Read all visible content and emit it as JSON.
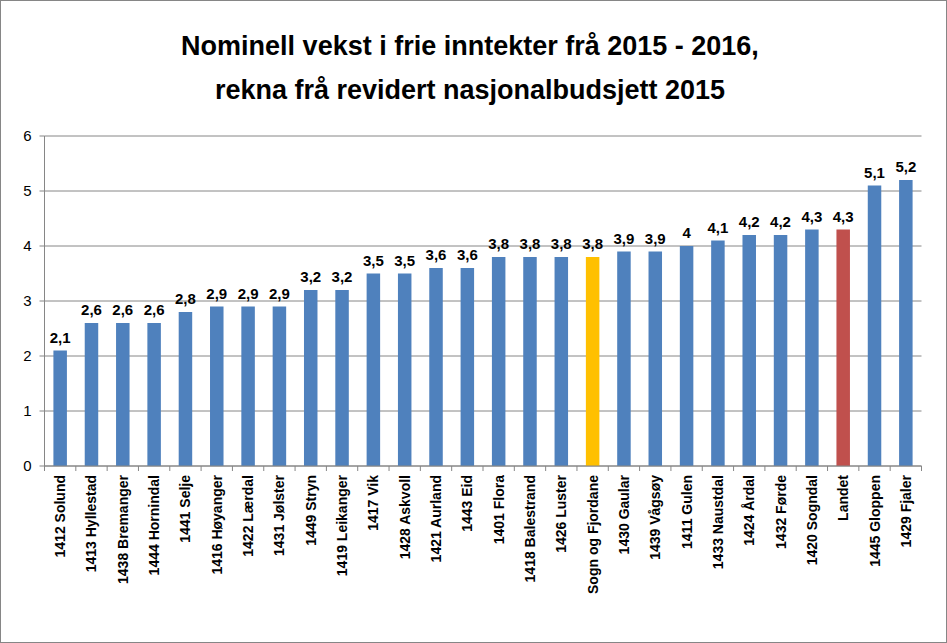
{
  "chart_data": {
    "type": "bar",
    "title": [
      "Nominell vekst i frie inntekter frå 2015 - 2016,",
      "rekna frå revidert nasjonalbudsjett 2015"
    ],
    "categories": [
      "1412 Solund",
      "1413 Hyllestad",
      "1438 Bremanger",
      "1444 Hornindal",
      "1441 Selje",
      "1416 Høyanger",
      "1422 Lærdal",
      "1431 Jølster",
      "1449 Stryn",
      "1419 Leikanger",
      "1417 Vik",
      "1428 Askvoll",
      "1421 Aurland",
      "1443 Eid",
      "1401 Flora",
      "1418 Balestrand",
      "1426 Luster",
      "Sogn og Fjordane",
      "1430 Gaular",
      "1439 Vågsøy",
      "1411 Gulen",
      "1433 Naustdal",
      "1424 Årdal",
      "1432 Førde",
      "1420 Sogndal",
      "Landet",
      "1445 Gloppen",
      "1429 Fjaler"
    ],
    "values": [
      2.1,
      2.6,
      2.6,
      2.6,
      2.8,
      2.9,
      2.9,
      2.9,
      3.2,
      3.2,
      3.5,
      3.5,
      3.6,
      3.6,
      3.8,
      3.8,
      3.8,
      3.8,
      3.9,
      3.9,
      4,
      4.1,
      4.2,
      4.2,
      4.3,
      4.3,
      5.1,
      5.2
    ],
    "value_labels": [
      "2,1",
      "2,6",
      "2,6",
      "2,6",
      "2,8",
      "2,9",
      "2,9",
      "2,9",
      "3,2",
      "3,2",
      "3,5",
      "3,5",
      "3,6",
      "3,6",
      "3,8",
      "3,8",
      "3,8",
      "3,8",
      "3,9",
      "3,9",
      "4",
      "4,1",
      "4,2",
      "4,2",
      "4,3",
      "4,3",
      "5,1",
      "5,2"
    ],
    "colors": [
      "#4f81bd",
      "#4f81bd",
      "#4f81bd",
      "#4f81bd",
      "#4f81bd",
      "#4f81bd",
      "#4f81bd",
      "#4f81bd",
      "#4f81bd",
      "#4f81bd",
      "#4f81bd",
      "#4f81bd",
      "#4f81bd",
      "#4f81bd",
      "#4f81bd",
      "#4f81bd",
      "#4f81bd",
      "#ffc000",
      "#4f81bd",
      "#4f81bd",
      "#4f81bd",
      "#4f81bd",
      "#4f81bd",
      "#4f81bd",
      "#4f81bd",
      "#c0504d",
      "#4f81bd",
      "#4f81bd"
    ],
    "ylim": [
      0,
      6
    ],
    "yticks": [
      0,
      1,
      2,
      3,
      4,
      5,
      6
    ],
    "grid": true,
    "data_labels": true
  }
}
